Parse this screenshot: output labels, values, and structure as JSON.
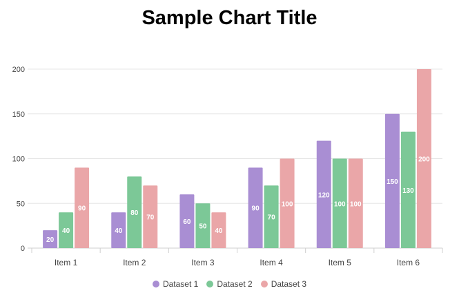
{
  "chart_data": {
    "type": "bar",
    "title": "Sample Chart Title",
    "categories": [
      "Item 1",
      "Item 2",
      "Item 3",
      "Item 4",
      "Item 5",
      "Item 6"
    ],
    "series": [
      {
        "name": "Dataset 1",
        "color": "#a98ed3",
        "values": [
          20,
          40,
          60,
          90,
          120,
          150
        ]
      },
      {
        "name": "Dataset 2",
        "color": "#7cc897",
        "values": [
          40,
          80,
          50,
          70,
          100,
          130
        ]
      },
      {
        "name": "Dataset 3",
        "color": "#eaa6a8",
        "values": [
          90,
          70,
          40,
          100,
          100,
          200
        ]
      }
    ],
    "ylim": [
      0,
      200
    ],
    "yticks": [
      "0",
      "50",
      "100",
      "150",
      "200"
    ],
    "grid": true,
    "data_labels": true,
    "legend_position": "bottom"
  }
}
